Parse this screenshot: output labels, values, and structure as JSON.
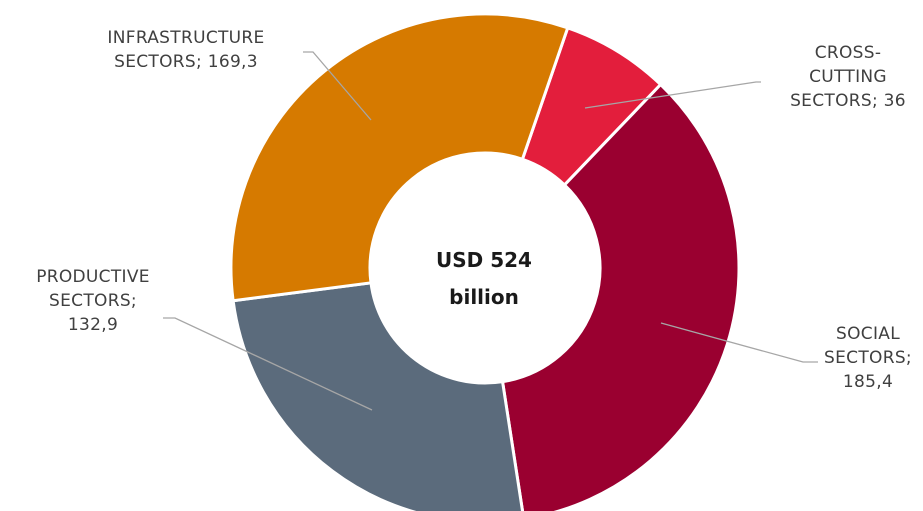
{
  "chart_data": {
    "type": "pie",
    "variant": "donut",
    "center_label": [
      "USD 524",
      "billion"
    ],
    "slices": [
      {
        "label_lines": [
          "CROSS-",
          "CUTTING",
          "SECTORS; 36"
        ],
        "category": "CROSS-CUTTING SECTORS",
        "value": 36,
        "color": "#e31e3c"
      },
      {
        "label_lines": [
          "SOCIAL",
          "SECTORS;",
          "185,4"
        ],
        "category": "SOCIAL SECTORS",
        "value": 185.4,
        "color": "#9a0030"
      },
      {
        "label_lines": [
          "PRODUCTIVE",
          "SECTORS;",
          "132,9"
        ],
        "category": "PRODUCTIVE SECTORS",
        "value": 132.9,
        "color": "#5b6b7c"
      },
      {
        "label_lines": [
          "INFRASTRUCTURE",
          "SECTORS; 169,3"
        ],
        "category": "INFRASTRUCTURE SECTORS",
        "value": 169.3,
        "color": "#d67a00"
      }
    ],
    "legend": "none"
  }
}
